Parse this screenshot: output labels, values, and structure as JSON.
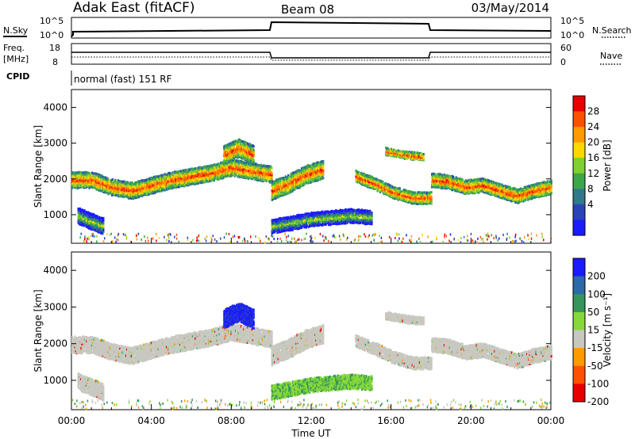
{
  "header": {
    "station": "Adak East (fitACF)",
    "beam": "Beam 08",
    "date": "03/May/2014"
  },
  "top_panel_labels": {
    "nsky": "N.Sky",
    "nsearch": "N.Search",
    "freq": "Freq.",
    "freq_unit": "[MHz]",
    "nave": "Nave",
    "cpid_label": "CPID",
    "cpid_value": "normal (fast) 151 RF"
  },
  "top_panel_ticks": {
    "noise_left": [
      "10^5",
      "10^0"
    ],
    "noise_right": [
      "10^5",
      "10^0"
    ],
    "freq_left": [
      "18",
      "8"
    ],
    "nave_right": [
      "60",
      "0"
    ]
  },
  "chart_data": [
    {
      "type": "heatmap",
      "title": "",
      "ylabel": "Slant Range [km]",
      "xlabel": "",
      "ylim": [
        200,
        4500
      ],
      "x_ticks": [
        "00:00",
        "04:00",
        "08:00",
        "12:00",
        "16:00",
        "20:00",
        "00:00"
      ],
      "y_ticks": [
        1000,
        2000,
        3000,
        4000
      ],
      "colorbar": {
        "label": "Power [dB]",
        "ticks": [
          "28",
          "24",
          "20",
          "16",
          "12",
          "8",
          "4"
        ],
        "colors": [
          "#e80000",
          "#ff5000",
          "#ff9a00",
          "#ffd800",
          "#7fd030",
          "#3ca64a",
          "#2f7a8a",
          "#2a44b8",
          "#1b1bff"
        ]
      }
    },
    {
      "type": "heatmap",
      "title": "",
      "ylabel": "Slant Range [km]",
      "xlabel": "Time UT",
      "ylim": [
        200,
        4500
      ],
      "x_ticks": [
        "00:00",
        "04:00",
        "08:00",
        "12:00",
        "16:00",
        "20:00",
        "00:00"
      ],
      "y_ticks": [
        1000,
        2000,
        3000,
        4000
      ],
      "colorbar": {
        "label": "Velocity [m s⁻¹]",
        "ticks": [
          "200",
          "100",
          "50",
          "15",
          "-15",
          "-50",
          "-100",
          "-200"
        ],
        "colors": [
          "#1b1bff",
          "#2a6aa8",
          "#35955a",
          "#86d83a",
          "#c8c8c0",
          "#ff9a00",
          "#ff5000",
          "#e80000"
        ]
      }
    }
  ],
  "bands": {
    "power": [
      {
        "x0": 0.0,
        "x1": 10.0,
        "y": [
          2000,
          2000,
          1800,
          1700,
          1850,
          2000,
          2100,
          2200,
          2350,
          2250,
          2150
        ],
        "w": 200
      },
      {
        "x0": 10.0,
        "x1": 12.6,
        "y": [
          1700,
          1900,
          2150,
          2300
        ],
        "w": 250
      },
      {
        "x0": 14.2,
        "x1": 18.0,
        "y": [
          2100,
          1900,
          1650,
          1500,
          1500
        ],
        "w": 150
      },
      {
        "x0": 18.0,
        "x1": 24.0,
        "y": [
          2000,
          1950,
          1800,
          1850,
          1700,
          1550,
          1700,
          1800
        ],
        "w": 180
      },
      {
        "x0": 10.0,
        "x1": 15.0,
        "y": [
          700,
          800,
          900,
          950,
          1000,
          950
        ],
        "w": 180
      },
      {
        "x0": 0.3,
        "x1": 1.6,
        "y": [
          1000,
          850,
          700
        ],
        "w": 200
      },
      {
        "x0": 7.6,
        "x1": 9.1,
        "y": [
          2700,
          2900,
          2700
        ],
        "w": 250
      },
      {
        "x0": 15.7,
        "x1": 17.6,
        "y": [
          2800,
          2700,
          2650
        ],
        "w": 80
      }
    ]
  }
}
